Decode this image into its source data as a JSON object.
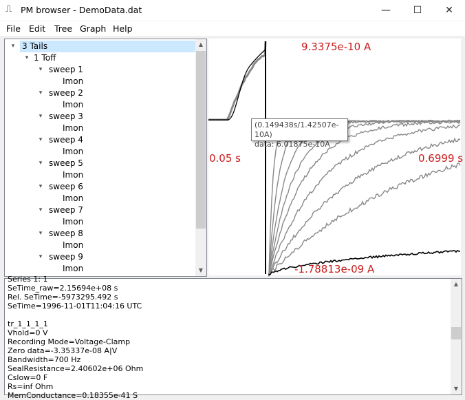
{
  "window": {
    "title": "PM browser - DemoData.dat",
    "icon": "waveform-icon",
    "minimize_glyph": "—",
    "maximize_glyph": "☐",
    "close_glyph": "✕"
  },
  "menu": [
    "File",
    "Edit",
    "Tree",
    "Graph",
    "Help"
  ],
  "tree": {
    "root": "3 Tails",
    "series": "1 Toff",
    "sweeps": [
      {
        "label": "sweep 1",
        "trace": "Imon"
      },
      {
        "label": "sweep 2",
        "trace": "Imon"
      },
      {
        "label": "sweep 3",
        "trace": "Imon"
      },
      {
        "label": "sweep 4",
        "trace": "Imon"
      },
      {
        "label": "sweep 5",
        "trace": "Imon"
      },
      {
        "label": "sweep 6",
        "trace": "Imon"
      },
      {
        "label": "sweep 7",
        "trace": "Imon"
      },
      {
        "label": "sweep 8",
        "trace": "Imon"
      },
      {
        "label": "sweep 9",
        "trace": "Imon"
      }
    ]
  },
  "graph": {
    "y_max_label": "9.3375e-10 A",
    "y_min_label": "-1.78813e-09 A",
    "x_min_label": "0.05 s",
    "x_max_label": "0.6999 s",
    "tooltip_line1": "(0.149438s/1.42507e-10A)",
    "tooltip_line2": "data: 6.01875e-10A",
    "label_color": "#cc1b1b",
    "trace_color": "#888888",
    "highlight_trace_color": "#000000"
  },
  "info": {
    "lines": [
      "Series 1: 1",
      "SeTime_raw=2.15694e+08 s",
      "Rel. SeTime=-5973295.492 s",
      "SeTime=1996-11-01T11:04:16 UTC",
      "",
      "tr_1_1_1_1",
      "Vhold=0 V",
      "Recording Mode=Voltage-Clamp",
      "Zero data=-3.35337e-08 A|V",
      "Bandwidth=700 Hz",
      "SealResistance=2.40602e+06 Ohm",
      "Cslow=0 F",
      "Rs=inf Ohm",
      "MemConductance=0.18355e-41 S"
    ]
  }
}
